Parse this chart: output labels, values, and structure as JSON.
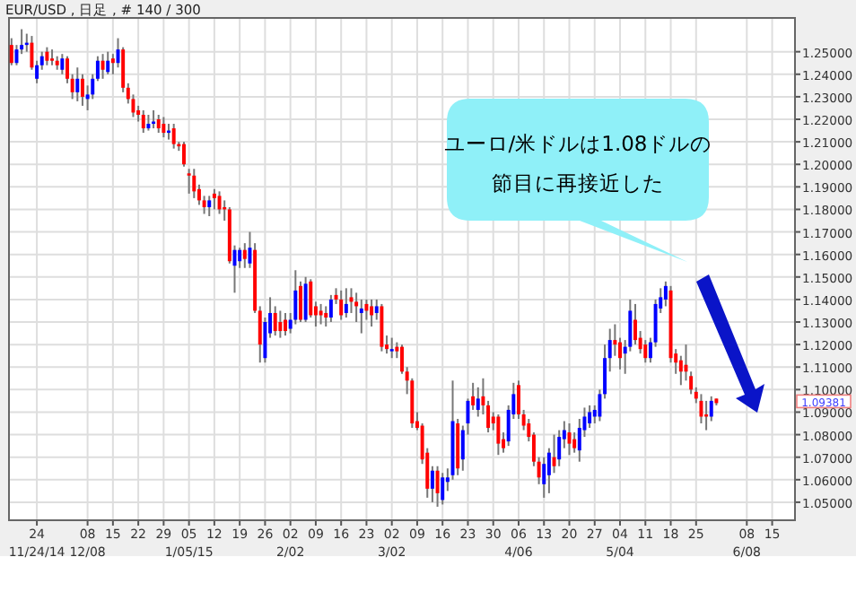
{
  "chart_data": {
    "type": "candlestick",
    "title": "EUR/USD , 日足 , # 140 / 300",
    "categories": [
      null,
      null,
      null,
      null,
      null,
      "24\n11/24/14",
      null,
      null,
      null,
      null,
      null,
      null,
      null,
      null,
      null,
      "08\n12/08",
      null,
      null,
      null,
      null,
      "15",
      null,
      null,
      null,
      null,
      "22",
      null,
      null,
      null,
      null,
      "29",
      null,
      null,
      null,
      null,
      "05\n1/05/15",
      null,
      null,
      null,
      null,
      "12",
      null,
      null,
      null,
      null,
      "19",
      null,
      null,
      null,
      null,
      "26",
      null,
      null,
      null,
      null,
      "02\n2/02",
      null,
      null,
      null,
      null,
      "09",
      null,
      null,
      null,
      null,
      "16",
      null,
      null,
      null,
      null,
      "23",
      null,
      null,
      null,
      null,
      "02\n3/02",
      null,
      null,
      null,
      null,
      "09",
      null,
      null,
      null,
      null,
      "16",
      null,
      null,
      null,
      null,
      "23",
      null,
      null,
      null,
      null,
      "30",
      null,
      null,
      null,
      null,
      "06\n4/06",
      null,
      null,
      null,
      null,
      "13",
      null,
      null,
      null,
      null,
      "20",
      null,
      null,
      null,
      null,
      "27",
      null,
      null,
      null,
      null,
      "04\n5/04",
      null,
      null,
      null,
      null,
      "11",
      null,
      null,
      null,
      null,
      "18",
      null,
      null,
      null,
      null,
      "25",
      null,
      null,
      null,
      null,
      null,
      null,
      null,
      null,
      null,
      "08\n6/08",
      null,
      null,
      null,
      null,
      "15",
      null,
      null,
      null,
      null
    ],
    "ohlc": [
      [
        1.253,
        1.256,
        1.244,
        1.245
      ],
      [
        1.245,
        1.253,
        1.244,
        1.251
      ],
      [
        1.251,
        1.26,
        1.249,
        1.253
      ],
      [
        1.253,
        1.258,
        1.25,
        1.254
      ],
      [
        1.254,
        1.257,
        1.242,
        1.243
      ],
      [
        1.238,
        1.246,
        1.236,
        1.244
      ],
      [
        1.244,
        1.25,
        1.242,
        1.248
      ],
      [
        1.25,
        1.252,
        1.244,
        1.246
      ],
      [
        1.247,
        1.251,
        1.244,
        1.246
      ],
      [
        1.246,
        1.248,
        1.242,
        1.244
      ],
      [
        1.242,
        1.249,
        1.24,
        1.247
      ],
      [
        1.247,
        1.248,
        1.236,
        1.238
      ],
      [
        1.238,
        1.24,
        1.229,
        1.232
      ],
      [
        1.232,
        1.243,
        1.228,
        1.238
      ],
      [
        1.238,
        1.24,
        1.226,
        1.23
      ],
      [
        1.229,
        1.235,
        1.224,
        1.231
      ],
      [
        1.231,
        1.24,
        1.229,
        1.238
      ],
      [
        1.238,
        1.248,
        1.237,
        1.246
      ],
      [
        1.246,
        1.249,
        1.238,
        1.242
      ],
      [
        1.241,
        1.25,
        1.24,
        1.246
      ],
      [
        1.247,
        1.249,
        1.24,
        1.245
      ],
      [
        1.245,
        1.256,
        1.243,
        1.251
      ],
      [
        1.251,
        1.252,
        1.232,
        1.234
      ],
      [
        1.234,
        1.236,
        1.227,
        1.229
      ],
      [
        1.229,
        1.231,
        1.221,
        1.223
      ],
      [
        1.224,
        1.226,
        1.219,
        1.222
      ],
      [
        1.222,
        1.224,
        1.214,
        1.216
      ],
      [
        1.216,
        1.222,
        1.215,
        1.218
      ],
      [
        1.218,
        1.224,
        1.216,
        1.219
      ],
      [
        1.22,
        1.222,
        1.214,
        1.216
      ],
      [
        1.218,
        1.221,
        1.212,
        1.214
      ],
      [
        1.214,
        1.218,
        1.211,
        1.215
      ],
      [
        1.216,
        1.218,
        1.207,
        1.209
      ],
      [
        1.209,
        1.21,
        1.206,
        1.208
      ],
      [
        1.209,
        1.21,
        1.199,
        1.2
      ],
      [
        1.196,
        1.198,
        1.187,
        1.195
      ],
      [
        1.195,
        1.198,
        1.185,
        1.188
      ],
      [
        1.189,
        1.191,
        1.182,
        1.184
      ],
      [
        1.184,
        1.186,
        1.178,
        1.181
      ],
      [
        1.181,
        1.186,
        1.177,
        1.184
      ],
      [
        1.187,
        1.189,
        1.18,
        1.185
      ],
      [
        1.186,
        1.188,
        1.178,
        1.18
      ],
      [
        1.181,
        1.184,
        1.175,
        1.18
      ],
      [
        1.18,
        1.181,
        1.156,
        1.157
      ],
      [
        1.155,
        1.164,
        1.143,
        1.162
      ],
      [
        1.157,
        1.163,
        1.154,
        1.162
      ],
      [
        1.162,
        1.165,
        1.154,
        1.158
      ],
      [
        1.156,
        1.17,
        1.154,
        1.163
      ],
      [
        1.162,
        1.165,
        1.134,
        1.135
      ],
      [
        1.135,
        1.137,
        1.112,
        1.12
      ],
      [
        1.114,
        1.132,
        1.112,
        1.13
      ],
      [
        1.125,
        1.141,
        1.123,
        1.134
      ],
      [
        1.134,
        1.137,
        1.124,
        1.126
      ],
      [
        1.13,
        1.135,
        1.123,
        1.126
      ],
      [
        1.131,
        1.134,
        1.124,
        1.126
      ],
      [
        1.127,
        1.134,
        1.125,
        1.131
      ],
      [
        1.131,
        1.153,
        1.129,
        1.144
      ],
      [
        1.146,
        1.148,
        1.13,
        1.131
      ],
      [
        1.131,
        1.15,
        1.13,
        1.147
      ],
      [
        1.148,
        1.149,
        1.132,
        1.133
      ],
      [
        1.137,
        1.139,
        1.128,
        1.133
      ],
      [
        1.135,
        1.138,
        1.129,
        1.133
      ],
      [
        1.134,
        1.137,
        1.128,
        1.132
      ],
      [
        1.132,
        1.142,
        1.13,
        1.14
      ],
      [
        1.142,
        1.145,
        1.138,
        1.14
      ],
      [
        1.14,
        1.144,
        1.131,
        1.133
      ],
      [
        1.134,
        1.145,
        1.132,
        1.138
      ],
      [
        1.141,
        1.145,
        1.134,
        1.139
      ],
      [
        1.139,
        1.143,
        1.13,
        1.137
      ],
      [
        1.134,
        1.14,
        1.125,
        1.136
      ],
      [
        1.138,
        1.14,
        1.131,
        1.135
      ],
      [
        1.137,
        1.14,
        1.128,
        1.133
      ],
      [
        1.134,
        1.14,
        1.131,
        1.137
      ],
      [
        1.137,
        1.138,
        1.117,
        1.119
      ],
      [
        1.12,
        1.124,
        1.116,
        1.118
      ],
      [
        1.117,
        1.123,
        1.114,
        1.118
      ],
      [
        1.119,
        1.121,
        1.114,
        1.117
      ],
      [
        1.119,
        1.12,
        1.107,
        1.108
      ],
      [
        1.108,
        1.11,
        1.098,
        1.104
      ],
      [
        1.104,
        1.105,
        1.083,
        1.085
      ],
      [
        1.086,
        1.09,
        1.082,
        1.083
      ],
      [
        1.084,
        1.085,
        1.067,
        1.069
      ],
      [
        1.072,
        1.074,
        1.052,
        1.056
      ],
      [
        1.056,
        1.066,
        1.05,
        1.064
      ],
      [
        1.064,
        1.066,
        1.048,
        1.054
      ],
      [
        1.051,
        1.063,
        1.049,
        1.061
      ],
      [
        1.059,
        1.065,
        1.055,
        1.061
      ],
      [
        1.062,
        1.104,
        1.06,
        1.086
      ],
      [
        1.085,
        1.087,
        1.062,
        1.065
      ],
      [
        1.069,
        1.084,
        1.064,
        1.082
      ],
      [
        1.085,
        1.096,
        1.08,
        1.095
      ],
      [
        1.097,
        1.103,
        1.091,
        1.093
      ],
      [
        1.091,
        1.101,
        1.088,
        1.096
      ],
      [
        1.097,
        1.105,
        1.089,
        1.093
      ],
      [
        1.093,
        1.095,
        1.081,
        1.083
      ],
      [
        1.088,
        1.09,
        1.082,
        1.085
      ],
      [
        1.088,
        1.089,
        1.071,
        1.076
      ],
      [
        1.078,
        1.081,
        1.072,
        1.074
      ],
      [
        1.077,
        1.093,
        1.075,
        1.091
      ],
      [
        1.089,
        1.103,
        1.087,
        1.098
      ],
      [
        1.102,
        1.104,
        1.087,
        1.089
      ],
      [
        1.089,
        1.091,
        1.082,
        1.084
      ],
      [
        1.085,
        1.087,
        1.077,
        1.079
      ],
      [
        1.08,
        1.081,
        1.066,
        1.068
      ],
      [
        1.068,
        1.07,
        1.058,
        1.061
      ],
      [
        1.058,
        1.07,
        1.052,
        1.067
      ],
      [
        1.062,
        1.074,
        1.054,
        1.072
      ],
      [
        1.07,
        1.08,
        1.063,
        1.066
      ],
      [
        1.069,
        1.082,
        1.066,
        1.079
      ],
      [
        1.078,
        1.086,
        1.074,
        1.082
      ],
      [
        1.081,
        1.085,
        1.071,
        1.076
      ],
      [
        1.078,
        1.081,
        1.072,
        1.074
      ],
      [
        1.073,
        1.087,
        1.068,
        1.083
      ],
      [
        1.082,
        1.092,
        1.079,
        1.088
      ],
      [
        1.085,
        1.093,
        1.083,
        1.09
      ],
      [
        1.088,
        1.093,
        1.085,
        1.091
      ],
      [
        1.088,
        1.1,
        1.086,
        1.098
      ],
      [
        1.098,
        1.12,
        1.096,
        1.114
      ],
      [
        1.114,
        1.127,
        1.108,
        1.122
      ],
      [
        1.122,
        1.129,
        1.115,
        1.12
      ],
      [
        1.121,
        1.123,
        1.109,
        1.114
      ],
      [
        1.116,
        1.122,
        1.107,
        1.119
      ],
      [
        1.119,
        1.14,
        1.117,
        1.135
      ],
      [
        1.131,
        1.138,
        1.12,
        1.122
      ],
      [
        1.123,
        1.126,
        1.116,
        1.118
      ],
      [
        1.12,
        1.122,
        1.112,
        1.114
      ],
      [
        1.114,
        1.123,
        1.112,
        1.121
      ],
      [
        1.121,
        1.14,
        1.119,
        1.138
      ],
      [
        1.136,
        1.145,
        1.134,
        1.141
      ],
      [
        1.14,
        1.148,
        1.137,
        1.146
      ],
      [
        1.144,
        1.146,
        1.112,
        1.114
      ],
      [
        1.116,
        1.118,
        1.107,
        1.112
      ],
      [
        1.113,
        1.115,
        1.102,
        1.108
      ],
      [
        1.111,
        1.12,
        1.104,
        1.108
      ],
      [
        1.106,
        1.108,
        1.098,
        1.1
      ],
      [
        1.099,
        1.101,
        1.094,
        1.096
      ],
      [
        1.095,
        1.098,
        1.085,
        1.088
      ],
      [
        1.089,
        1.095,
        1.082,
        1.088
      ],
      [
        1.088,
        1.097,
        1.086,
        1.095
      ],
      [
        1.096,
        1.096,
        1.093,
        1.094
      ],
      null,
      null,
      null,
      null,
      null,
      null,
      null,
      null,
      null,
      null,
      null,
      null,
      null,
      null,
      null
    ],
    "ylim": [
      1.042,
      1.265
    ],
    "yticks": [
      {
        "value": 1.05,
        "label": "1.05000"
      },
      {
        "value": 1.06,
        "label": "1.06000"
      },
      {
        "value": 1.07,
        "label": "1.07000"
      },
      {
        "value": 1.08,
        "label": "1.08000"
      },
      {
        "value": 1.09,
        "label": "1.09000"
      },
      {
        "value": 1.1,
        "label": "1.10000"
      },
      {
        "value": 1.11,
        "label": "1.11000"
      },
      {
        "value": 1.12,
        "label": "1.12000"
      },
      {
        "value": 1.13,
        "label": "1.13000"
      },
      {
        "value": 1.14,
        "label": "1.14000"
      },
      {
        "value": 1.15,
        "label": "1.15000"
      },
      {
        "value": 1.16,
        "label": "1.16000"
      },
      {
        "value": 1.17,
        "label": "1.17000"
      },
      {
        "value": 1.18,
        "label": "1.18000"
      },
      {
        "value": 1.19,
        "label": "1.19000"
      },
      {
        "value": 1.2,
        "label": "1.20000"
      },
      {
        "value": 1.21,
        "label": "1.21000"
      },
      {
        "value": 1.22,
        "label": "1.22000"
      },
      {
        "value": 1.23,
        "label": "1.23000"
      },
      {
        "value": 1.24,
        "label": "1.24000"
      },
      {
        "value": 1.25,
        "label": "1.25000"
      }
    ],
    "grid": true,
    "annotations": [
      "ユーロ/米ドルは1.08ドルの節目に再接近した",
      "1.09381"
    ]
  }
}
